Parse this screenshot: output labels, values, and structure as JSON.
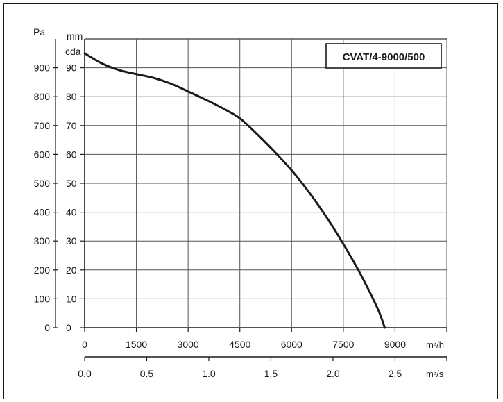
{
  "chart_data": {
    "type": "line",
    "title": "CVAT/4-9000/500",
    "x_primary": {
      "unit_label": "m³/h",
      "ticks": [
        "0",
        "1500",
        "3000",
        "4500",
        "6000",
        "7500",
        "9000"
      ],
      "range": [
        0,
        10500
      ]
    },
    "x_secondary": {
      "unit_label": "m³/s",
      "ticks": [
        "0.0",
        "0.5",
        "1.0",
        "1.5",
        "2.0",
        "2.5"
      ]
    },
    "y_primary": {
      "unit_label": "Pa",
      "ticks": [
        "0",
        "100",
        "200",
        "300",
        "400",
        "500",
        "600",
        "700",
        "800",
        "900"
      ],
      "range": [
        0,
        1000
      ]
    },
    "y_secondary": {
      "unit_label_top": "mm",
      "unit_label_bottom": "cda",
      "ticks": [
        "0",
        "10",
        "20",
        "30",
        "40",
        "50",
        "60",
        "70",
        "80",
        "90"
      ]
    },
    "grid": true,
    "series": [
      {
        "x": [
          0,
          500,
          1000,
          1500,
          2000,
          2500,
          3000,
          3500,
          4000,
          4500,
          5000,
          5500,
          6000,
          6500,
          7000,
          7500,
          8000,
          8500,
          8700
        ],
        "y": [
          950,
          915,
          892,
          878,
          865,
          845,
          818,
          790,
          760,
          725,
          670,
          610,
          545,
          470,
          385,
          290,
          185,
          65,
          0
        ]
      }
    ]
  }
}
